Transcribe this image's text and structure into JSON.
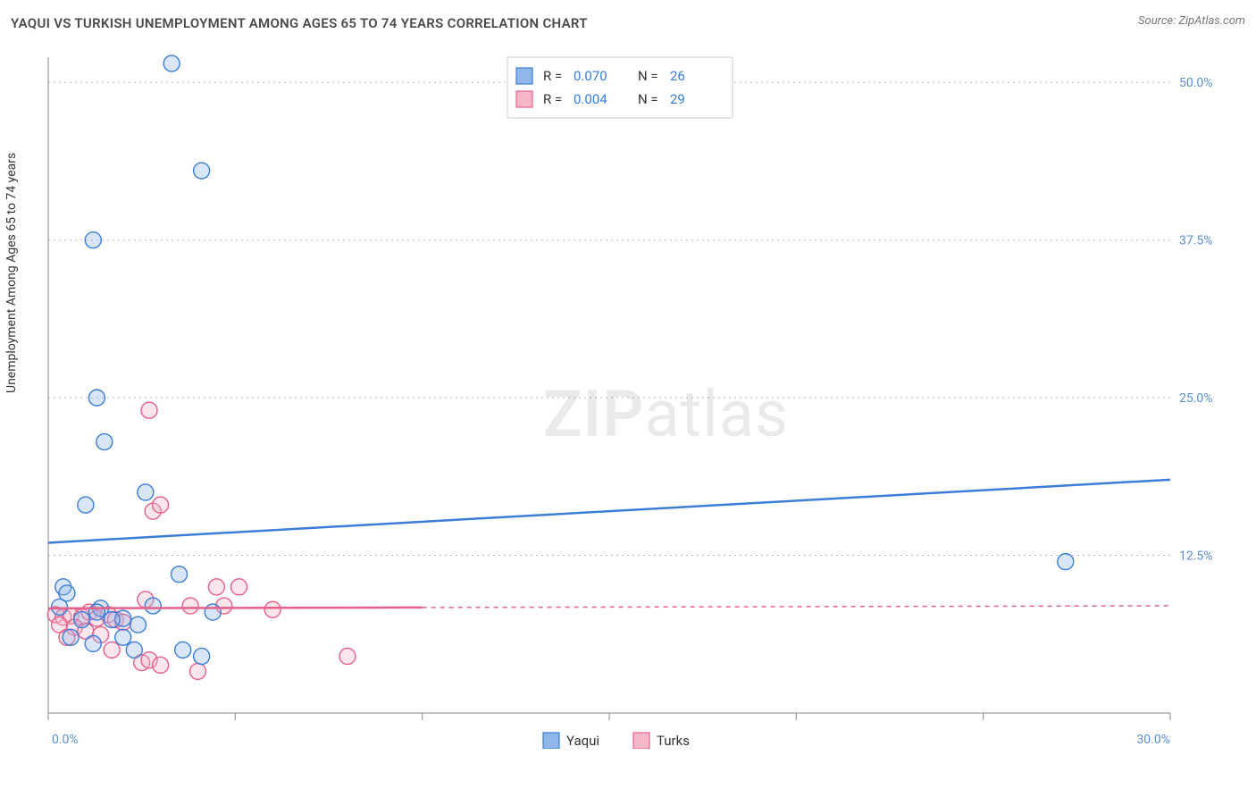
{
  "title": "YAQUI VS TURKISH UNEMPLOYMENT AMONG AGES 65 TO 74 YEARS CORRELATION CHART",
  "source": "Source: ZipAtlas.com",
  "y_axis_label": "Unemployment Among Ages 65 to 74 years",
  "watermark": {
    "bold": "ZIP",
    "rest": "atlas"
  },
  "chart": {
    "type": "scatter",
    "background_color": "#ffffff",
    "grid_color": "#bbbbbb",
    "axis_color": "#888888",
    "tick_label_color": "#5b8fd6",
    "xlim": [
      0,
      30
    ],
    "ylim": [
      0,
      52
    ],
    "x_ticks": [
      0,
      5,
      10,
      15,
      20,
      25,
      30
    ],
    "x_tick_labels": {
      "0": "0.0%",
      "30": "30.0%"
    },
    "y_ticks": [
      12.5,
      25.0,
      37.5,
      50.0
    ],
    "y_tick_labels": [
      "12.5%",
      "25.0%",
      "37.5%",
      "50.0%"
    ],
    "marker_radius": 9,
    "trend_line_width": 2.5,
    "series": {
      "yaqui": {
        "label": "Yaqui",
        "color_fill": "#8fb8e8",
        "color_stroke": "#3b7dd8",
        "R": "0.070",
        "N": "26",
        "trend": {
          "y_at_x0": 13.5,
          "y_at_x30": 18.5,
          "solid_until_x": 30
        },
        "points": [
          [
            3.3,
            51.5
          ],
          [
            4.1,
            43.0
          ],
          [
            1.2,
            37.5
          ],
          [
            1.3,
            25.0
          ],
          [
            1.5,
            21.5
          ],
          [
            2.6,
            17.5
          ],
          [
            1.0,
            16.5
          ],
          [
            3.5,
            11.0
          ],
          [
            0.4,
            10.0
          ],
          [
            0.5,
            9.5
          ],
          [
            0.3,
            8.4
          ],
          [
            1.4,
            8.3
          ],
          [
            1.3,
            8.0
          ],
          [
            2.8,
            8.5
          ],
          [
            4.4,
            8.0
          ],
          [
            2.0,
            7.5
          ],
          [
            0.9,
            7.4
          ],
          [
            1.7,
            7.4
          ],
          [
            2.4,
            7.0
          ],
          [
            2.0,
            6.0
          ],
          [
            0.6,
            6.0
          ],
          [
            1.2,
            5.5
          ],
          [
            2.3,
            5.0
          ],
          [
            3.6,
            5.0
          ],
          [
            4.1,
            4.5
          ],
          [
            27.2,
            12.0
          ]
        ]
      },
      "turks": {
        "label": "Turks",
        "color_fill": "#f4b8c8",
        "color_stroke": "#e85f8a",
        "R": "0.004",
        "N": "29",
        "trend": {
          "y_at_x0": 8.3,
          "y_at_x30": 8.5,
          "solid_until_x": 10
        },
        "points": [
          [
            2.7,
            24.0
          ],
          [
            2.8,
            16.0
          ],
          [
            3.0,
            16.5
          ],
          [
            4.5,
            10.0
          ],
          [
            5.1,
            10.0
          ],
          [
            2.6,
            9.0
          ],
          [
            3.8,
            8.5
          ],
          [
            4.7,
            8.5
          ],
          [
            6.0,
            8.2
          ],
          [
            0.2,
            7.8
          ],
          [
            0.4,
            7.6
          ],
          [
            0.6,
            7.7
          ],
          [
            0.9,
            7.6
          ],
          [
            1.1,
            8.0
          ],
          [
            1.3,
            7.5
          ],
          [
            1.6,
            7.8
          ],
          [
            1.8,
            7.4
          ],
          [
            2.0,
            7.2
          ],
          [
            0.3,
            7.0
          ],
          [
            0.7,
            6.8
          ],
          [
            1.0,
            6.5
          ],
          [
            1.4,
            6.2
          ],
          [
            0.5,
            6.0
          ],
          [
            1.7,
            5.0
          ],
          [
            2.5,
            4.0
          ],
          [
            2.7,
            4.2
          ],
          [
            3.0,
            3.8
          ],
          [
            4.0,
            3.3
          ],
          [
            8.0,
            4.5
          ]
        ]
      }
    }
  },
  "legend_top": {
    "r_label": "R =",
    "n_label": "N ="
  },
  "bottom_legend": {
    "items": [
      "yaqui",
      "turks"
    ]
  }
}
